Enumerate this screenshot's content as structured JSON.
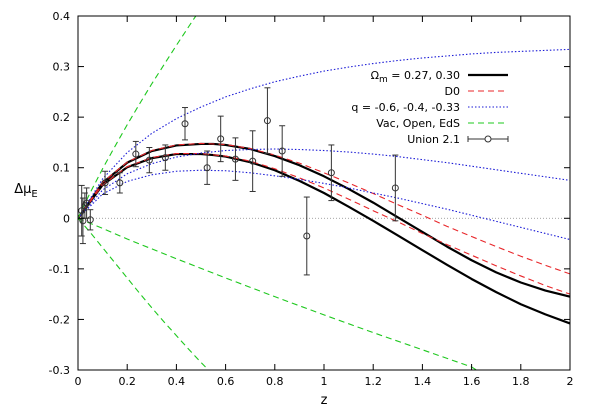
{
  "chart_data": {
    "type": "line",
    "title": "",
    "xlabel": "z",
    "ylabel_main": "Δμ",
    "ylabel_sub": "E",
    "xlim": [
      0,
      2
    ],
    "ylim": [
      -0.3,
      0.4
    ],
    "xticks": [
      0,
      0.2,
      0.4,
      0.6,
      0.8,
      1,
      1.2,
      1.4,
      1.6,
      1.8,
      2
    ],
    "xtick_labels": [
      "0",
      "0.2",
      "0.4",
      "0.6",
      "0.8",
      "1",
      "1.2",
      "1.4",
      "1.6",
      "1.8",
      "2"
    ],
    "yticks": [
      -0.3,
      -0.2,
      -0.1,
      0,
      0.1,
      0.2,
      0.3,
      0.4
    ],
    "ytick_labels": [
      "-0.3",
      "-0.2",
      "-0.1",
      "0",
      "0.1",
      "0.2",
      "0.3",
      "0.4"
    ],
    "grid": false,
    "zero_line": true,
    "legend_position": "top-right",
    "legend": [
      {
        "label": "Ωm = 0.27, 0.30",
        "label_main": "Ω",
        "label_sub": "m",
        "label_rest": " = 0.27, 0.30",
        "style": "solid",
        "color": "#000000"
      },
      {
        "label": "D0",
        "style": "dashed",
        "color": "#e8262a"
      },
      {
        "label": "q = -0.6, -0.4, -0.33",
        "style": "dotted",
        "color": "#1a1ad6"
      },
      {
        "label": "Vac, Open, EdS",
        "style": "dashed",
        "color": "#1ec81e"
      },
      {
        "label": "Union 2.1",
        "style": "errorbar",
        "color": "#333333"
      }
    ],
    "series": [
      {
        "name": "Ωm = 0.27",
        "style": "solid",
        "color": "#000000",
        "x": [
          0,
          0.1,
          0.2,
          0.3,
          0.4,
          0.5,
          0.55,
          0.6,
          0.7,
          0.8,
          0.9,
          1.0,
          1.1,
          1.2,
          1.3,
          1.4,
          1.5,
          1.6,
          1.7,
          1.8,
          1.9,
          2.0
        ],
        "y": [
          0,
          0.07,
          0.11,
          0.133,
          0.144,
          0.147,
          0.147,
          0.145,
          0.137,
          0.123,
          0.105,
          0.083,
          0.058,
          0.031,
          0.002,
          -0.027,
          -0.056,
          -0.083,
          -0.107,
          -0.127,
          -0.143,
          -0.155
        ]
      },
      {
        "name": "Ωm = 0.30",
        "style": "solid",
        "color": "#000000",
        "x": [
          0,
          0.1,
          0.2,
          0.3,
          0.4,
          0.5,
          0.55,
          0.6,
          0.7,
          0.8,
          0.9,
          1.0,
          1.1,
          1.2,
          1.3,
          1.4,
          1.5,
          1.6,
          1.7,
          1.8,
          1.9,
          2.0
        ],
        "y": [
          0,
          0.066,
          0.101,
          0.119,
          0.127,
          0.127,
          0.125,
          0.122,
          0.111,
          0.095,
          0.074,
          0.05,
          0.023,
          -0.005,
          -0.034,
          -0.063,
          -0.092,
          -0.12,
          -0.146,
          -0.17,
          -0.19,
          -0.208
        ]
      },
      {
        "name": "D0 (upper)",
        "style": "dashed",
        "color": "#e8262a",
        "x": [
          0,
          0.1,
          0.2,
          0.3,
          0.4,
          0.5,
          0.6,
          0.7,
          0.8,
          0.9,
          1.0,
          1.1,
          1.2,
          1.3,
          1.4,
          1.5,
          1.6,
          1.7,
          1.8,
          1.9,
          2.0
        ],
        "y": [
          0,
          0.071,
          0.111,
          0.134,
          0.145,
          0.148,
          0.146,
          0.138,
          0.125,
          0.109,
          0.09,
          0.07,
          0.049,
          0.027,
          0.006,
          -0.016,
          -0.036,
          -0.056,
          -0.075,
          -0.093,
          -0.11
        ]
      },
      {
        "name": "D0 (lower)",
        "style": "dashed",
        "color": "#e8262a",
        "x": [
          0,
          0.1,
          0.2,
          0.3,
          0.4,
          0.5,
          0.6,
          0.7,
          0.8,
          0.9,
          1.0,
          1.1,
          1.2,
          1.3,
          1.4,
          1.5,
          1.6,
          1.7,
          1.8,
          1.9,
          2.0
        ],
        "y": [
          0,
          0.066,
          0.102,
          0.12,
          0.128,
          0.128,
          0.123,
          0.113,
          0.098,
          0.08,
          0.06,
          0.038,
          0.015,
          -0.007,
          -0.03,
          -0.052,
          -0.073,
          -0.094,
          -0.114,
          -0.133,
          -0.15
        ]
      },
      {
        "name": "q = -0.6",
        "style": "dotted",
        "color": "#1a1ad6",
        "x": [
          0,
          0.1,
          0.2,
          0.3,
          0.4,
          0.5,
          0.6,
          0.7,
          0.8,
          0.9,
          1.0,
          1.1,
          1.2,
          1.3,
          1.4,
          1.5,
          1.6,
          1.7,
          1.8,
          1.9,
          2.0
        ],
        "y": [
          0,
          0.078,
          0.13,
          0.168,
          0.197,
          0.22,
          0.24,
          0.256,
          0.27,
          0.281,
          0.291,
          0.299,
          0.306,
          0.312,
          0.317,
          0.321,
          0.325,
          0.328,
          0.33,
          0.332,
          0.334
        ]
      },
      {
        "name": "q = -0.4",
        "style": "dotted",
        "color": "#1a1ad6",
        "x": [
          0,
          0.1,
          0.2,
          0.3,
          0.4,
          0.5,
          0.6,
          0.7,
          0.8,
          0.9,
          1.0,
          1.1,
          1.2,
          1.3,
          1.4,
          1.5,
          1.6,
          1.7,
          1.8,
          1.9,
          2.0
        ],
        "y": [
          0,
          0.056,
          0.088,
          0.108,
          0.121,
          0.129,
          0.134,
          0.136,
          0.137,
          0.136,
          0.134,
          0.131,
          0.127,
          0.122,
          0.116,
          0.11,
          0.103,
          0.096,
          0.089,
          0.082,
          0.075
        ]
      },
      {
        "name": "q = -0.33",
        "style": "dotted",
        "color": "#1a1ad6",
        "x": [
          0,
          0.1,
          0.2,
          0.3,
          0.4,
          0.5,
          0.6,
          0.7,
          0.8,
          0.9,
          1.0,
          1.1,
          1.2,
          1.3,
          1.4,
          1.5,
          1.6,
          1.7,
          1.8,
          1.9,
          2.0
        ],
        "y": [
          0,
          0.048,
          0.073,
          0.086,
          0.093,
          0.095,
          0.094,
          0.09,
          0.084,
          0.077,
          0.069,
          0.06,
          0.05,
          0.04,
          0.029,
          0.018,
          0.006,
          -0.006,
          -0.018,
          -0.03,
          -0.042
        ]
      },
      {
        "name": "Vac",
        "style": "dashed",
        "color": "#1ec81e",
        "x": [
          0,
          0.02,
          0.05,
          0.1,
          0.15,
          0.2,
          0.25,
          0.3,
          0.35,
          0.4,
          0.45,
          0.49
        ],
        "y": [
          0,
          0.021,
          0.051,
          0.098,
          0.142,
          0.185,
          0.226,
          0.266,
          0.304,
          0.342,
          0.379,
          0.408
        ]
      },
      {
        "name": "Open",
        "style": "dashed",
        "color": "#1ec81e",
        "x": [
          0,
          0.1,
          0.2,
          0.4,
          0.6,
          0.8,
          1.0,
          1.2,
          1.4,
          1.6,
          1.62
        ],
        "y": [
          0,
          -0.02,
          -0.041,
          -0.08,
          -0.118,
          -0.155,
          -0.191,
          -0.226,
          -0.26,
          -0.294,
          -0.3
        ]
      },
      {
        "name": "EdS",
        "style": "dashed",
        "color": "#1ec81e",
        "x": [
          0,
          0.05,
          0.1,
          0.15,
          0.2,
          0.25,
          0.3,
          0.35,
          0.4,
          0.45,
          0.5,
          0.53
        ],
        "y": [
          0,
          -0.028,
          -0.058,
          -0.088,
          -0.118,
          -0.148,
          -0.177,
          -0.205,
          -0.232,
          -0.259,
          -0.285,
          -0.3
        ]
      }
    ],
    "points": {
      "name": "Union 2.1",
      "x": [
        0.015,
        0.02,
        0.028,
        0.035,
        0.05,
        0.11,
        0.17,
        0.235,
        0.29,
        0.355,
        0.435,
        0.525,
        0.58,
        0.64,
        0.71,
        0.77,
        0.83,
        0.93,
        1.03,
        1.29
      ],
      "y": [
        0.015,
        -0.005,
        0.025,
        0.03,
        -0.003,
        0.07,
        0.07,
        0.127,
        0.115,
        0.12,
        0.187,
        0.1,
        0.157,
        0.117,
        0.113,
        0.193,
        0.133,
        -0.035,
        0.09,
        0.06
      ],
      "yerr": [
        0.05,
        0.045,
        0.025,
        0.03,
        0.02,
        0.023,
        0.02,
        0.025,
        0.025,
        0.025,
        0.032,
        0.033,
        0.045,
        0.042,
        0.06,
        0.065,
        0.05,
        0.077,
        0.055,
        0.065
      ]
    }
  }
}
